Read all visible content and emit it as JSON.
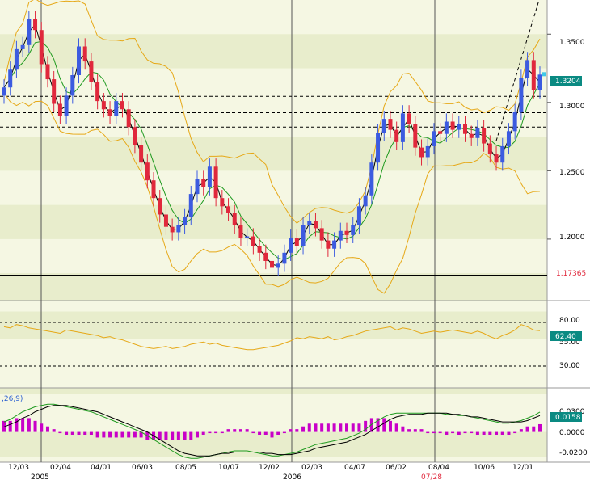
{
  "chart_data": [
    {
      "type": "candlestick",
      "panel": "price",
      "x_axis_labels": [
        "12/03",
        "02/04",
        "04/01",
        "06/03",
        "08/05",
        "10/07",
        "12/02",
        "02/03",
        "04/07",
        "06/02",
        "08/04",
        "10/06",
        "12/01"
      ],
      "year_labels": [
        "2005",
        "2006"
      ],
      "cursor_date_label": "07/28",
      "y_tick_labels": [
        "1.3500",
        "1.3000",
        "1.2500",
        "1.2000"
      ],
      "ylim": [
        1.155,
        1.375
      ],
      "last_price_label": "1.3204",
      "horizontal_line_label": "1.17365",
      "horizontal_line_value": 1.17365,
      "dashed_levels": [
        1.3045,
        1.2925,
        1.282
      ],
      "close_series": [
        1.311,
        1.324,
        1.339,
        1.342,
        1.361,
        1.353,
        1.328,
        1.317,
        1.299,
        1.29,
        1.305,
        1.32,
        1.341,
        1.33,
        1.315,
        1.301,
        1.295,
        1.29,
        1.301,
        1.295,
        1.282,
        1.269,
        1.256,
        1.243,
        1.23,
        1.218,
        1.209,
        1.205,
        1.21,
        1.216,
        1.233,
        1.244,
        1.238,
        1.253,
        1.23,
        1.224,
        1.219,
        1.21,
        1.201,
        1.202,
        1.195,
        1.19,
        1.184,
        1.179,
        1.182,
        1.19,
        1.201,
        1.195,
        1.21,
        1.213,
        1.208,
        1.199,
        1.193,
        1.199,
        1.206,
        1.203,
        1.21,
        1.224,
        1.232,
        1.256,
        1.278,
        1.288,
        1.28,
        1.271,
        1.292,
        1.284,
        1.267,
        1.26,
        1.268,
        1.279,
        1.277,
        1.286,
        1.28,
        1.284,
        1.277,
        1.274,
        1.281,
        1.27,
        1.262,
        1.256,
        1.268,
        1.279,
        1.293,
        1.318,
        1.331,
        1.309,
        1.3204
      ]
    },
    {
      "type": "line",
      "panel": "oscillator",
      "y_tick_labels": [
        "80.00",
        "55.00",
        "30.00"
      ],
      "ylim": [
        10,
        90
      ],
      "dashed_levels": [
        70,
        30
      ],
      "last_value_label": "62.40",
      "values": [
        66,
        65,
        68,
        67,
        65,
        64,
        63,
        62,
        61,
        60,
        63,
        62,
        61,
        60,
        59,
        58,
        56,
        57,
        55,
        54,
        52,
        50,
        48,
        47,
        46,
        47,
        48,
        46,
        47,
        48,
        50,
        51,
        52,
        50,
        51,
        49,
        48,
        47,
        46,
        45,
        45,
        46,
        47,
        48,
        49,
        51,
        53,
        56,
        55,
        57,
        56,
        55,
        57,
        54,
        55,
        57,
        58,
        60,
        62,
        63,
        64,
        65,
        66,
        63,
        65,
        64,
        62,
        60,
        61,
        62,
        61,
        62,
        63,
        62,
        61,
        60,
        62,
        60,
        57,
        55,
        58,
        60,
        63,
        68,
        66,
        63,
        62.4
      ]
    },
    {
      "type": "bar_line",
      "panel": "macd",
      "indicator_label": ",26,9)",
      "y_tick_labels": [
        "0.0300",
        "0.0000",
        "-0.0200"
      ],
      "ylim": [
        -0.024,
        0.035
      ],
      "last_value_label": "0.0158",
      "macd": [
        0.008,
        0.01,
        0.013,
        0.016,
        0.018,
        0.02,
        0.021,
        0.022,
        0.022,
        0.021,
        0.02,
        0.019,
        0.018,
        0.017,
        0.016,
        0.014,
        0.012,
        0.01,
        0.008,
        0.006,
        0.004,
        0.002,
        0.0,
        -0.003,
        -0.006,
        -0.009,
        -0.012,
        -0.015,
        -0.018,
        -0.02,
        -0.021,
        -0.021,
        -0.02,
        -0.019,
        -0.018,
        -0.017,
        -0.016,
        -0.015,
        -0.015,
        -0.015,
        -0.016,
        -0.017,
        -0.018,
        -0.019,
        -0.019,
        -0.018,
        -0.017,
        -0.016,
        -0.014,
        -0.012,
        -0.01,
        -0.009,
        -0.008,
        -0.007,
        -0.006,
        -0.005,
        -0.003,
        -0.001,
        0.002,
        0.006,
        0.009,
        0.012,
        0.014,
        0.015,
        0.015,
        0.015,
        0.015,
        0.015,
        0.015,
        0.015,
        0.015,
        0.014,
        0.014,
        0.013,
        0.013,
        0.012,
        0.011,
        0.01,
        0.009,
        0.008,
        0.007,
        0.007,
        0.008,
        0.009,
        0.011,
        0.013,
        0.0158
      ],
      "signal": [
        0.004,
        0.006,
        0.008,
        0.011,
        0.013,
        0.016,
        0.018,
        0.02,
        0.021,
        0.021,
        0.021,
        0.02,
        0.019,
        0.018,
        0.017,
        0.016,
        0.014,
        0.012,
        0.01,
        0.008,
        0.006,
        0.004,
        0.002,
        0.0,
        -0.003,
        -0.006,
        -0.009,
        -0.012,
        -0.015,
        -0.017,
        -0.018,
        -0.019,
        -0.019,
        -0.019,
        -0.018,
        -0.017,
        -0.017,
        -0.016,
        -0.016,
        -0.016,
        -0.016,
        -0.016,
        -0.017,
        -0.017,
        -0.018,
        -0.018,
        -0.018,
        -0.017,
        -0.016,
        -0.015,
        -0.013,
        -0.012,
        -0.011,
        -0.01,
        -0.009,
        -0.008,
        -0.006,
        -0.004,
        -0.002,
        0.001,
        0.004,
        0.007,
        0.01,
        0.012,
        0.013,
        0.014,
        0.014,
        0.014,
        0.015,
        0.015,
        0.015,
        0.015,
        0.014,
        0.014,
        0.013,
        0.012,
        0.012,
        0.011,
        0.01,
        0.009,
        0.008,
        0.008,
        0.008,
        0.008,
        0.009,
        0.011,
        0.013
      ]
    }
  ],
  "colors": {
    "background": "#f5f7e3",
    "band_alt": "#e8edcc",
    "up_candle": "#3c5be0",
    "down_candle": "#e0283c",
    "bollinger": "#e6a817",
    "ma_green": "#1f9a1f",
    "ma_black": "#000000",
    "macd_hist": "#c800c8",
    "label_box": "#0a8a82",
    "price_label_red": "#e0283c"
  }
}
